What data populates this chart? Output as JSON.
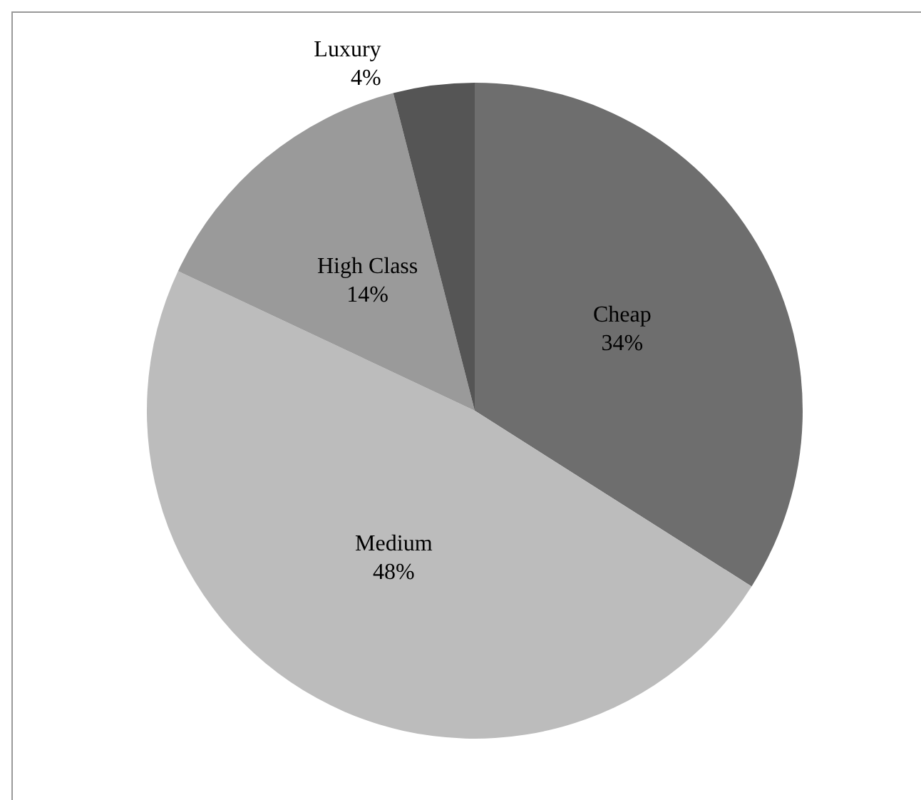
{
  "chart_data": {
    "type": "pie",
    "categories": [
      "Cheap",
      "Medium",
      "High Class",
      "Luxury"
    ],
    "values": [
      34,
      48,
      14,
      4
    ],
    "value_labels": [
      "34%",
      "48%",
      "14%",
      "4%"
    ],
    "colors": [
      "#6e6e6e",
      "#bcbcbc",
      "#9a9a9a",
      "#555555"
    ]
  }
}
